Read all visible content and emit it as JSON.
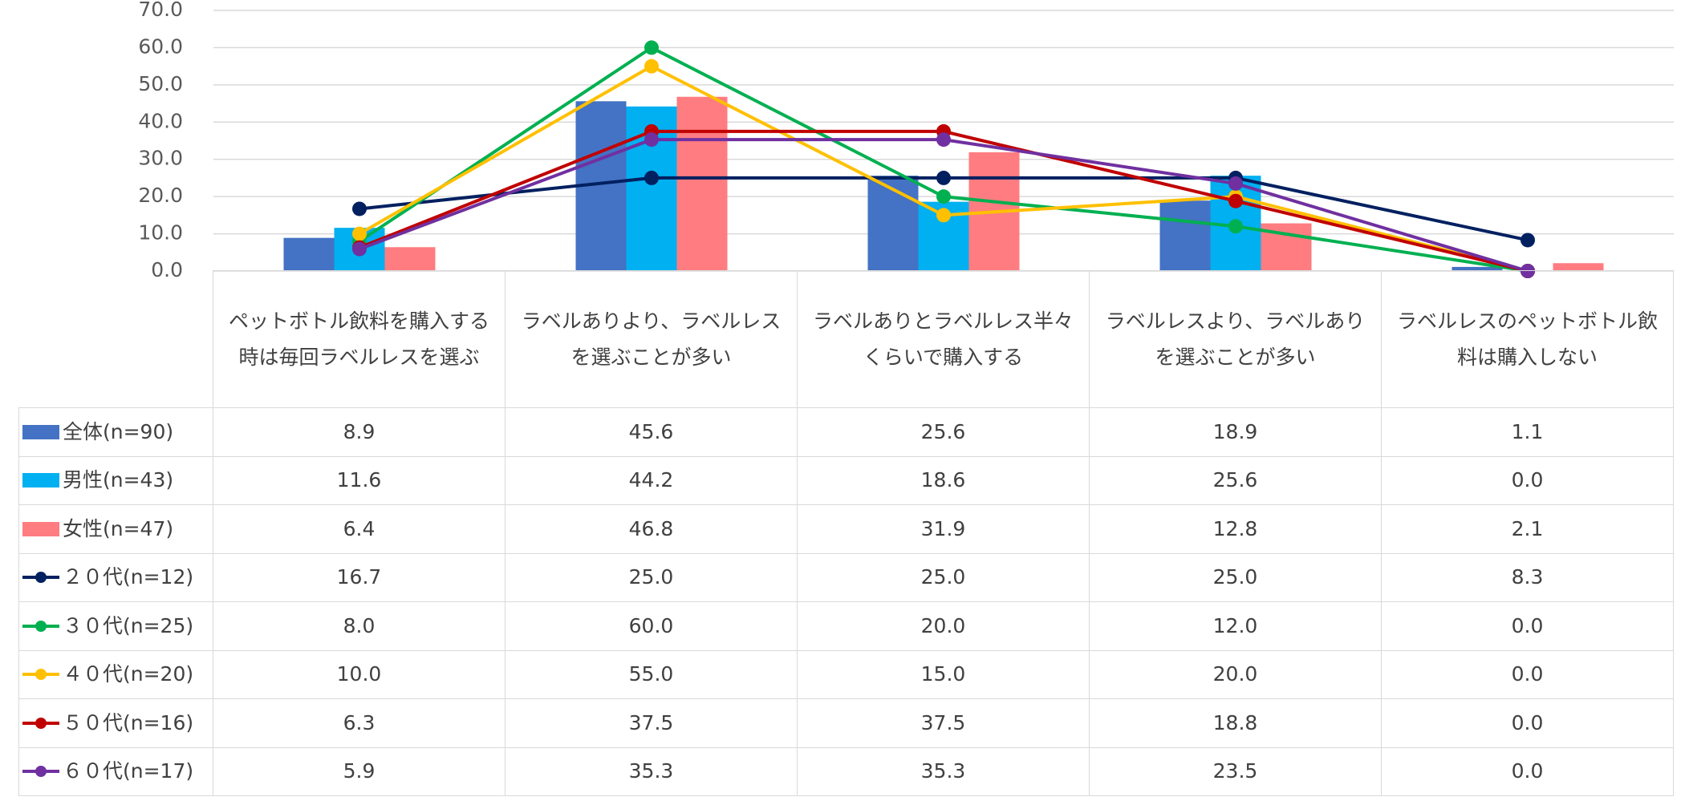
{
  "chart_data": {
    "type": "bar-line-table",
    "categories": [
      "ペットボトル飲料を購入する時は毎回ラベルレスを選ぶ",
      "ラベルありより、ラベルレスを選ぶことが多い",
      "ラベルありとラベルレス半々くらいで購入する",
      "ラベルレスより、ラベルありを選ぶことが多い",
      "ラベルレスのペットボトル飲料は購入しない"
    ],
    "series": [
      {
        "name": "全体(n=90)",
        "type": "bar",
        "color": "#4472c4",
        "values": [
          8.9,
          45.6,
          25.6,
          18.9,
          1.1
        ],
        "value_labels": [
          "8.9",
          "45.6",
          "25.6",
          "18.9",
          "1.1"
        ]
      },
      {
        "name": "男性(n=43)",
        "type": "bar",
        "color": "#00b0f0",
        "values": [
          11.6,
          44.2,
          18.6,
          25.6,
          0
        ],
        "value_labels": [
          "11.6",
          "44.2",
          "18.6",
          "25.6",
          "0.0"
        ]
      },
      {
        "name": "女性(n=47)",
        "type": "bar",
        "color": "#ff7c80",
        "values": [
          6.4,
          46.8,
          31.9,
          12.8,
          2.1
        ],
        "value_labels": [
          "6.4",
          "46.8",
          "31.9",
          "12.8",
          "2.1"
        ]
      },
      {
        "name": "２０代(n=12)",
        "type": "line",
        "color": "#002060",
        "values": [
          16.7,
          25,
          25,
          25,
          8.3
        ],
        "value_labels": [
          "16.7",
          "25.0",
          "25.0",
          "25.0",
          "8.3"
        ]
      },
      {
        "name": "３０代(n=25)",
        "type": "line",
        "color": "#00b050",
        "values": [
          8,
          60,
          20,
          12,
          0
        ],
        "value_labels": [
          "8.0",
          "60.0",
          "20.0",
          "12.0",
          "0.0"
        ]
      },
      {
        "name": "４０代(n=20)",
        "type": "line",
        "color": "#ffc000",
        "values": [
          10,
          55,
          15,
          20,
          0
        ],
        "value_labels": [
          "10.0",
          "55.0",
          "15.0",
          "20.0",
          "0.0"
        ]
      },
      {
        "name": "５０代(n=16)",
        "type": "line",
        "color": "#c00000",
        "values": [
          6.3,
          37.5,
          37.5,
          18.8,
          0
        ],
        "value_labels": [
          "6.3",
          "37.5",
          "37.5",
          "18.8",
          "0.0"
        ]
      },
      {
        "name": "６０代(n=17)",
        "type": "line",
        "color": "#7030a0",
        "values": [
          5.9,
          35.3,
          35.3,
          23.5,
          0
        ],
        "value_labels": [
          "5.9",
          "35.3",
          "35.3",
          "23.5",
          "0.0"
        ]
      }
    ],
    "ylim": [
      0,
      70
    ],
    "yticks": [
      {
        "value": 0,
        "label": "0.0"
      },
      {
        "value": 10,
        "label": "10.0"
      },
      {
        "value": 20,
        "label": "20.0"
      },
      {
        "value": 30,
        "label": "30.0"
      },
      {
        "value": 40,
        "label": "40.0"
      },
      {
        "value": 50,
        "label": "50.0"
      },
      {
        "value": 60,
        "label": "60.0"
      },
      {
        "value": 70,
        "label": "70.0"
      }
    ],
    "grid": true
  }
}
